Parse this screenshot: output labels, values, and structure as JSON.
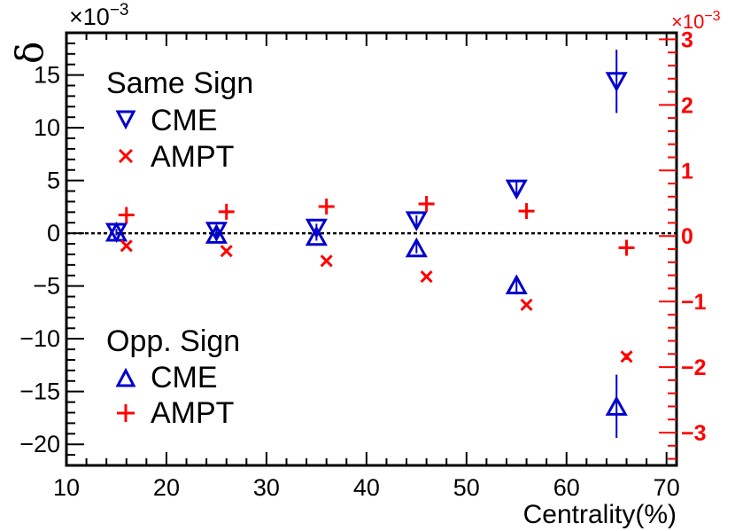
{
  "chart_data": {
    "type": "scatter",
    "xlabel": "Centrality(%)",
    "ylabel": "δ",
    "left_axis": {
      "range": [
        -22,
        19
      ],
      "ticks": [
        -20,
        -15,
        -10,
        -5,
        0,
        5,
        10,
        15
      ],
      "tick_labels": [
        "−20",
        "−15",
        "−10",
        "−5",
        "0",
        "5",
        "10",
        "15"
      ],
      "scale_label": "×10",
      "scale_exp": "−3",
      "units": "1e-3"
    },
    "right_axis": {
      "range": [
        -3.5,
        3.1
      ],
      "ticks": [
        -3,
        -2,
        -1,
        0,
        1,
        2,
        3
      ],
      "tick_labels": [
        "−3",
        "−2",
        "−1",
        "0",
        "1",
        "2",
        "3"
      ],
      "scale_label": "×10",
      "scale_exp": "−3",
      "units": "1e-3",
      "color": "#ff0000"
    },
    "x_axis": {
      "range": [
        10,
        71
      ],
      "ticks": [
        10,
        20,
        30,
        40,
        50,
        60,
        70
      ],
      "tick_labels": [
        "10",
        "20",
        "30",
        "40",
        "50",
        "60",
        "70"
      ]
    },
    "zero_line": true,
    "legend": {
      "same_sign_title": "Same Sign",
      "opp_sign_title": "Opp. Sign",
      "cme_label": "CME",
      "ampt_label": "AMPT",
      "same_cme_label": "CME",
      "same_ampt_label": "AMPT",
      "opp_cme_label": "CME",
      "opp_ampt_label": "AMPT"
    },
    "series": [
      {
        "name": "Same Sign CME",
        "axis": "left",
        "marker": "triangle-down",
        "color": "#0000cc",
        "x": [
          15,
          25,
          35,
          45,
          55,
          65
        ],
        "y": [
          0.1,
          0.2,
          0.5,
          1.2,
          4.2,
          14.4
        ],
        "err": [
          0.3,
          0.3,
          0.4,
          0.5,
          0.7,
          3.0
        ]
      },
      {
        "name": "Opp. Sign CME",
        "axis": "left",
        "marker": "triangle-up",
        "color": "#0000cc",
        "x": [
          15,
          25,
          35,
          45,
          55,
          65
        ],
        "y": [
          0.1,
          -0.1,
          -0.3,
          -1.4,
          -4.9,
          -16.4
        ],
        "err": [
          0.3,
          0.3,
          0.4,
          0.5,
          0.9,
          3.0
        ]
      },
      {
        "name": "Same Sign AMPT",
        "axis": "right",
        "marker": "x",
        "color": "#ff0000",
        "x": [
          16,
          26,
          36,
          46,
          56,
          66
        ],
        "y": [
          -0.15,
          -0.23,
          -0.38,
          -0.62,
          -1.05,
          -1.84
        ],
        "err": [
          0,
          0,
          0,
          0,
          0,
          0.05
        ]
      },
      {
        "name": "Opp. Sign AMPT",
        "axis": "right",
        "marker": "plus",
        "color": "#ff0000",
        "x": [
          16,
          26,
          36,
          46,
          56,
          66
        ],
        "y": [
          0.32,
          0.37,
          0.45,
          0.49,
          0.38,
          -0.18
        ],
        "err": [
          0,
          0,
          0,
          0,
          0,
          0
        ]
      }
    ]
  }
}
